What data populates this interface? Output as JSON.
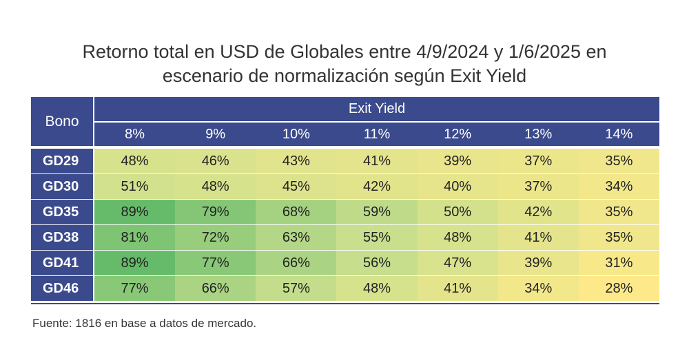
{
  "title": {
    "line1": "Retorno total en USD de Globales entre 4/9/2024 y 1/6/2025 en",
    "line2": "escenario de normalización según Exit Yield"
  },
  "table": {
    "row_header_label": "Bono",
    "group_header_label": "Exit Yield"
  },
  "chart_data": {
    "type": "table",
    "title": "Retorno total en USD de Globales entre 4/9/2024 y 1/6/2025 en escenario de normalización según Exit Yield",
    "row_label": "Bono",
    "column_group_label": "Exit Yield",
    "columns": [
      "8%",
      "9%",
      "10%",
      "11%",
      "12%",
      "13%",
      "14%"
    ],
    "rows": [
      {
        "name": "GD29",
        "values": [
          48,
          46,
          43,
          41,
          39,
          37,
          35
        ]
      },
      {
        "name": "GD30",
        "values": [
          51,
          48,
          45,
          42,
          40,
          37,
          34
        ]
      },
      {
        "name": "GD35",
        "values": [
          89,
          79,
          68,
          59,
          50,
          42,
          35
        ]
      },
      {
        "name": "GD38",
        "values": [
          81,
          72,
          63,
          55,
          48,
          41,
          35
        ]
      },
      {
        "name": "GD41",
        "values": [
          89,
          77,
          66,
          56,
          47,
          39,
          31
        ]
      },
      {
        "name": "GD46",
        "values": [
          77,
          66,
          57,
          48,
          41,
          34,
          28
        ]
      }
    ],
    "value_suffix": "%",
    "color_scale": {
      "low": "#fde98a",
      "mid": "#c9df8e",
      "high": "#66bb6a"
    }
  },
  "source": "Fuente: 1816 en base a datos de mercado."
}
